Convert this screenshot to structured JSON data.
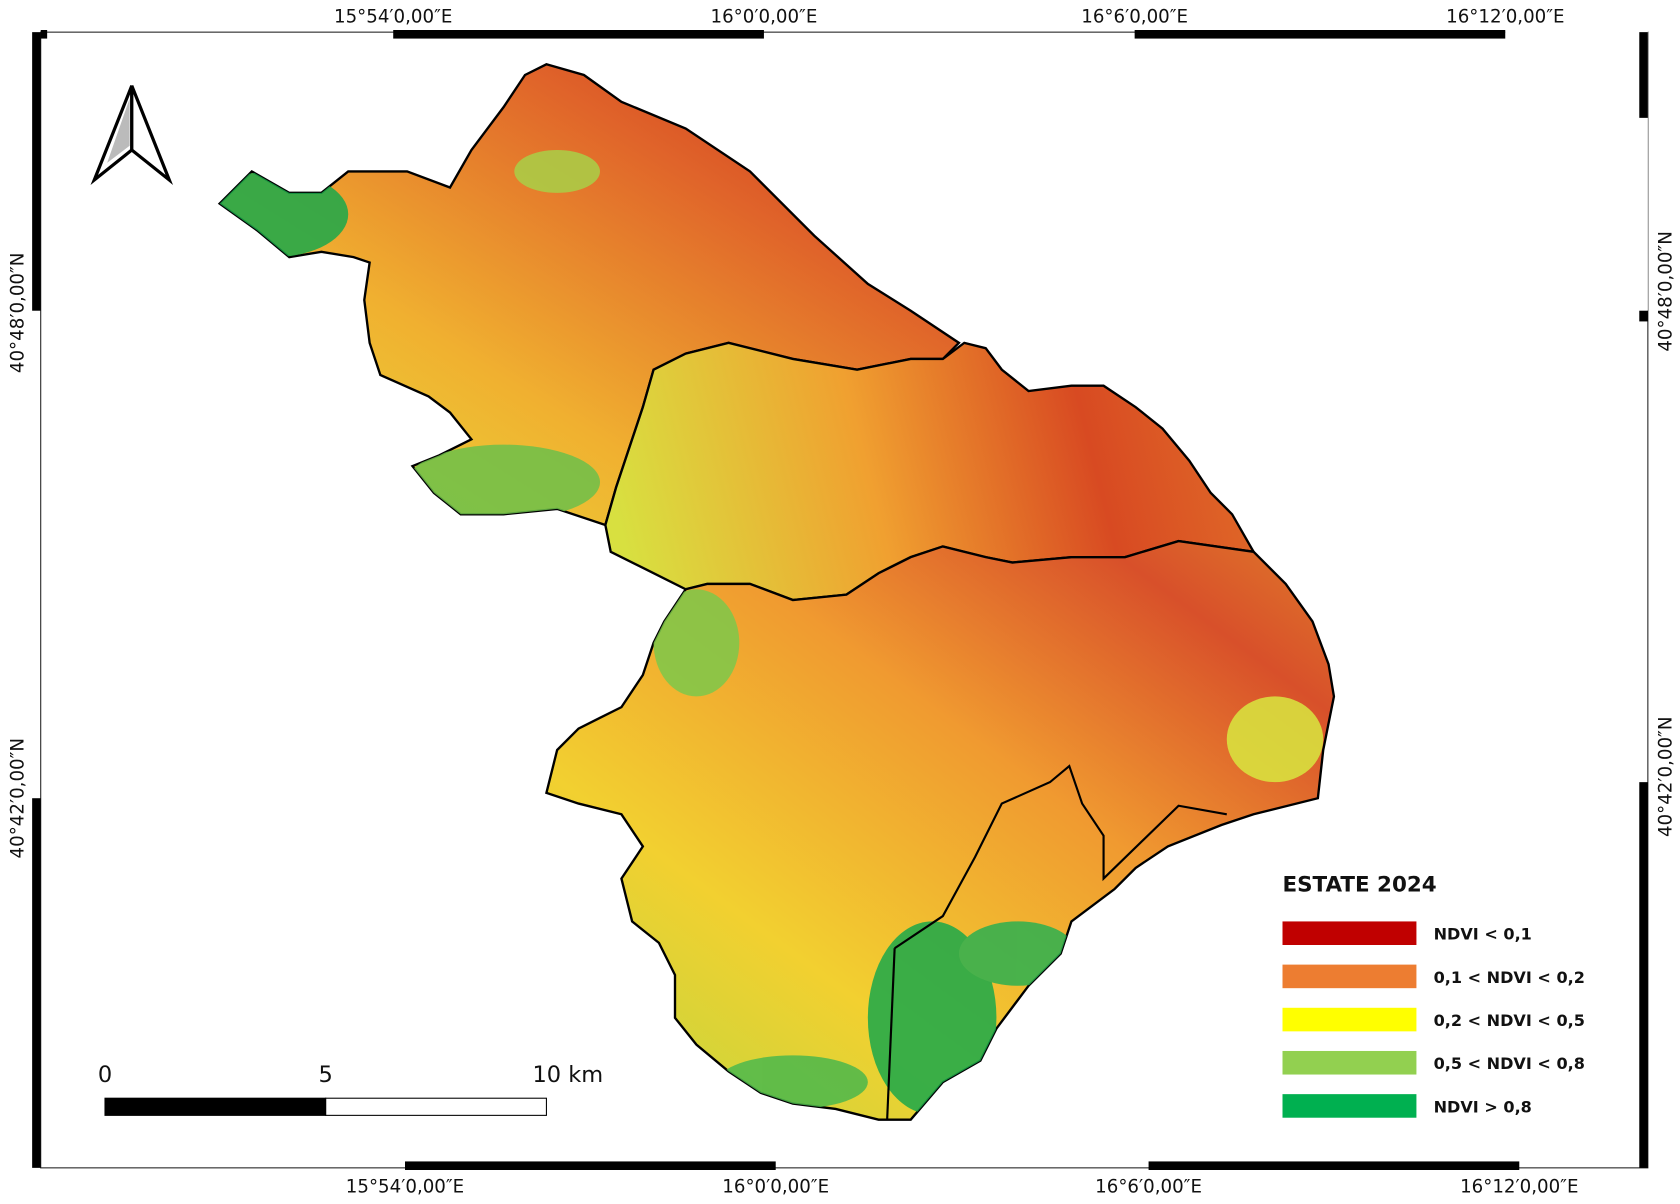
{
  "frame": {
    "top_labels": [
      "15°54′0,00″E",
      "16°0′0,00″E",
      "16°6′0,00″E",
      "16°12′0,00″E"
    ],
    "bottom_labels": [
      "15°54′0,00″E",
      "16°0′0,00″E",
      "16°6′0,00″E",
      "16°12′0,00″E"
    ],
    "left_labels": [
      "40°48′0,00″N",
      "40°42′0,00″N"
    ],
    "right_labels": [
      "40°48′0,00″N",
      "40°42′0,00″N"
    ]
  },
  "legend": {
    "title": "ESTATE 2024",
    "items": [
      {
        "label": "NDVI < 0,1",
        "color": "#c00000"
      },
      {
        "label": "0,1 < NDVI < 0,2",
        "color": "#ed7d31"
      },
      {
        "label": "0,2 < NDVI < 0,5",
        "color": "#ffff00"
      },
      {
        "label": "0,5 < NDVI < 0,8",
        "color": "#92d050"
      },
      {
        "label": "NDVI > 0,8",
        "color": "#00b050"
      }
    ]
  },
  "scale_bar": {
    "labels": [
      "0",
      "5",
      "10 km"
    ]
  }
}
